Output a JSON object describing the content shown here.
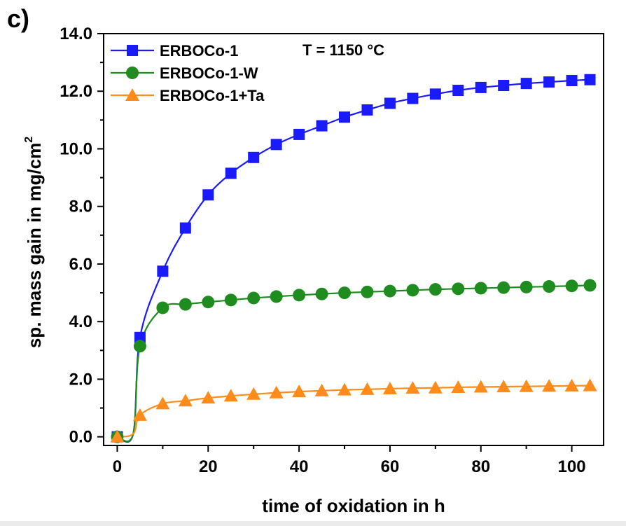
{
  "panel_label": "c)",
  "chart_data": {
    "type": "line",
    "annotation": "T = 1150 °C",
    "xlabel": "time of oxidation in h",
    "ylabel_main": "sp. mass gain in mg/cm",
    "ylabel_sup": "2",
    "xlim": [
      -3,
      107
    ],
    "ylim": [
      -0.3,
      14.0
    ],
    "xticks": [
      0,
      20,
      40,
      60,
      80,
      100
    ],
    "xtick_labels": [
      "0",
      "20",
      "40",
      "60",
      "80",
      "100"
    ],
    "yticks": [
      0,
      2,
      4,
      6,
      8,
      10,
      12,
      14
    ],
    "ytick_labels": [
      "0.0",
      "2.0",
      "4.0",
      "6.0",
      "8.0",
      "10.0",
      "12.0",
      "14.0"
    ],
    "legend_position": "top-left",
    "series": [
      {
        "name": "ERBOCo-1",
        "color": "#1a1aff",
        "marker": "square",
        "x": [
          0,
          5,
          10,
          15,
          20,
          25,
          30,
          35,
          40,
          45,
          50,
          55,
          60,
          65,
          70,
          75,
          80,
          85,
          90,
          95,
          100,
          104
        ],
        "y": [
          0.0,
          3.45,
          5.75,
          7.25,
          8.4,
          9.15,
          9.7,
          10.15,
          10.5,
          10.8,
          11.1,
          11.35,
          11.58,
          11.75,
          11.9,
          12.03,
          12.13,
          12.2,
          12.27,
          12.32,
          12.37,
          12.4
        ]
      },
      {
        "name": "ERBOCo-1-W",
        "color": "#1e8c1e",
        "marker": "circle",
        "x": [
          0,
          5,
          10,
          15,
          20,
          25,
          30,
          35,
          40,
          45,
          50,
          55,
          60,
          65,
          70,
          75,
          80,
          85,
          90,
          95,
          100,
          104
        ],
        "y": [
          0.0,
          3.15,
          4.48,
          4.6,
          4.68,
          4.75,
          4.82,
          4.87,
          4.92,
          4.96,
          5.0,
          5.03,
          5.06,
          5.09,
          5.12,
          5.14,
          5.16,
          5.18,
          5.2,
          5.22,
          5.24,
          5.26
        ]
      },
      {
        "name": "ERBOCo-1+Ta",
        "color": "#ff8c1a",
        "marker": "triangle",
        "x": [
          0,
          5,
          10,
          15,
          20,
          25,
          30,
          35,
          40,
          45,
          50,
          55,
          60,
          65,
          70,
          75,
          80,
          85,
          90,
          95,
          100,
          104
        ],
        "y": [
          0.0,
          0.75,
          1.15,
          1.25,
          1.35,
          1.42,
          1.48,
          1.53,
          1.57,
          1.6,
          1.63,
          1.65,
          1.67,
          1.69,
          1.7,
          1.72,
          1.73,
          1.74,
          1.75,
          1.76,
          1.77,
          1.78
        ]
      }
    ]
  }
}
